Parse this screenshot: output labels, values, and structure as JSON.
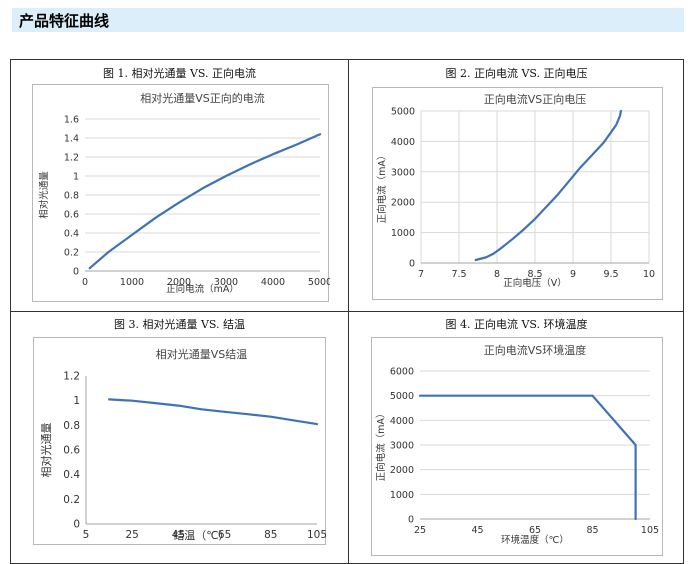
{
  "section": {
    "title": "产品特征曲线"
  },
  "chart_data": [
    {
      "caption": "图 1. 相对光通量 VS. 正向电流",
      "type": "line",
      "title": "相对光通量VS正向的电流",
      "xlabel": "正向电流（mA）",
      "ylabel": "相对光通量",
      "xlim": [
        0,
        5000
      ],
      "ylim": [
        0,
        1.6
      ],
      "xticks": [
        "0",
        "1000",
        "2000",
        "3000",
        "4000",
        "5000"
      ],
      "yticks": [
        "0",
        "0.2",
        "0.4",
        "0.6",
        "0.8",
        "1",
        "1.2",
        "1.4",
        "1.6"
      ],
      "grid": "horizontal",
      "series": [
        {
          "color": "#3f72b5",
          "x": [
            100,
            500,
            1000,
            1500,
            2000,
            2500,
            3000,
            3500,
            4000,
            4500,
            5000
          ],
          "y": [
            0.03,
            0.2,
            0.38,
            0.56,
            0.72,
            0.87,
            1.0,
            1.12,
            1.23,
            1.33,
            1.44
          ]
        }
      ]
    },
    {
      "caption": "图 2. 正向电流 VS. 正向电压",
      "type": "line",
      "title": "正向电流VS正向电压",
      "xlabel": "正向电压（V）",
      "ylabel": "正向电流（mA）",
      "xlim": [
        7,
        10
      ],
      "ylim": [
        0,
        5000
      ],
      "xticks": [
        "7",
        "7.5",
        "8",
        "8.5",
        "9",
        "9.5",
        "10"
      ],
      "yticks": [
        "0",
        "1000",
        "2000",
        "3000",
        "4000",
        "5000"
      ],
      "grid": "both",
      "series": [
        {
          "color": "#3f72b5",
          "x": [
            7.72,
            7.85,
            7.95,
            8.05,
            8.2,
            8.35,
            8.5,
            8.65,
            8.8,
            8.95,
            9.1,
            9.25,
            9.4,
            9.5,
            9.57,
            9.62,
            9.63
          ],
          "y": [
            100,
            180,
            300,
            480,
            780,
            1100,
            1450,
            1850,
            2250,
            2700,
            3150,
            3550,
            3950,
            4300,
            4550,
            4850,
            5000
          ]
        }
      ]
    },
    {
      "caption": "图 3. 相对光通量 VS. 结温",
      "type": "line",
      "title": "相对光通量VS结温",
      "xlabel": "结温（℃）",
      "ylabel": "相对光通量",
      "xlim": [
        5,
        105
      ],
      "ylim": [
        0,
        1.2
      ],
      "xticks": [
        "5",
        "25",
        "45",
        "65",
        "85",
        "105"
      ],
      "yticks": [
        "0",
        "0.2",
        "0.4",
        "0.6",
        "0.8",
        "1",
        "1.2"
      ],
      "grid": "none",
      "series": [
        {
          "color": "#3f72b5",
          "x": [
            15,
            25,
            35,
            45,
            55,
            65,
            75,
            85,
            95,
            105
          ],
          "y": [
            1.01,
            1.0,
            0.98,
            0.96,
            0.93,
            0.91,
            0.89,
            0.87,
            0.84,
            0.81
          ]
        }
      ]
    },
    {
      "caption": "图 4. 正向电流 VS. 环境温度",
      "type": "line",
      "title": "正向电流VS环境温度",
      "xlabel": "环境温度（℃）",
      "ylabel": "正向电流（mA）",
      "xlim": [
        25,
        105
      ],
      "ylim": [
        0,
        6000
      ],
      "xticks": [
        "25",
        "45",
        "65",
        "85",
        "105"
      ],
      "yticks": [
        "0",
        "1000",
        "2000",
        "3000",
        "4000",
        "5000",
        "6000"
      ],
      "grid": "horizontal",
      "series": [
        {
          "color": "#3f72b5",
          "x": [
            25,
            85,
            100,
            100
          ],
          "y": [
            5000,
            5000,
            3000,
            0
          ]
        }
      ]
    }
  ]
}
